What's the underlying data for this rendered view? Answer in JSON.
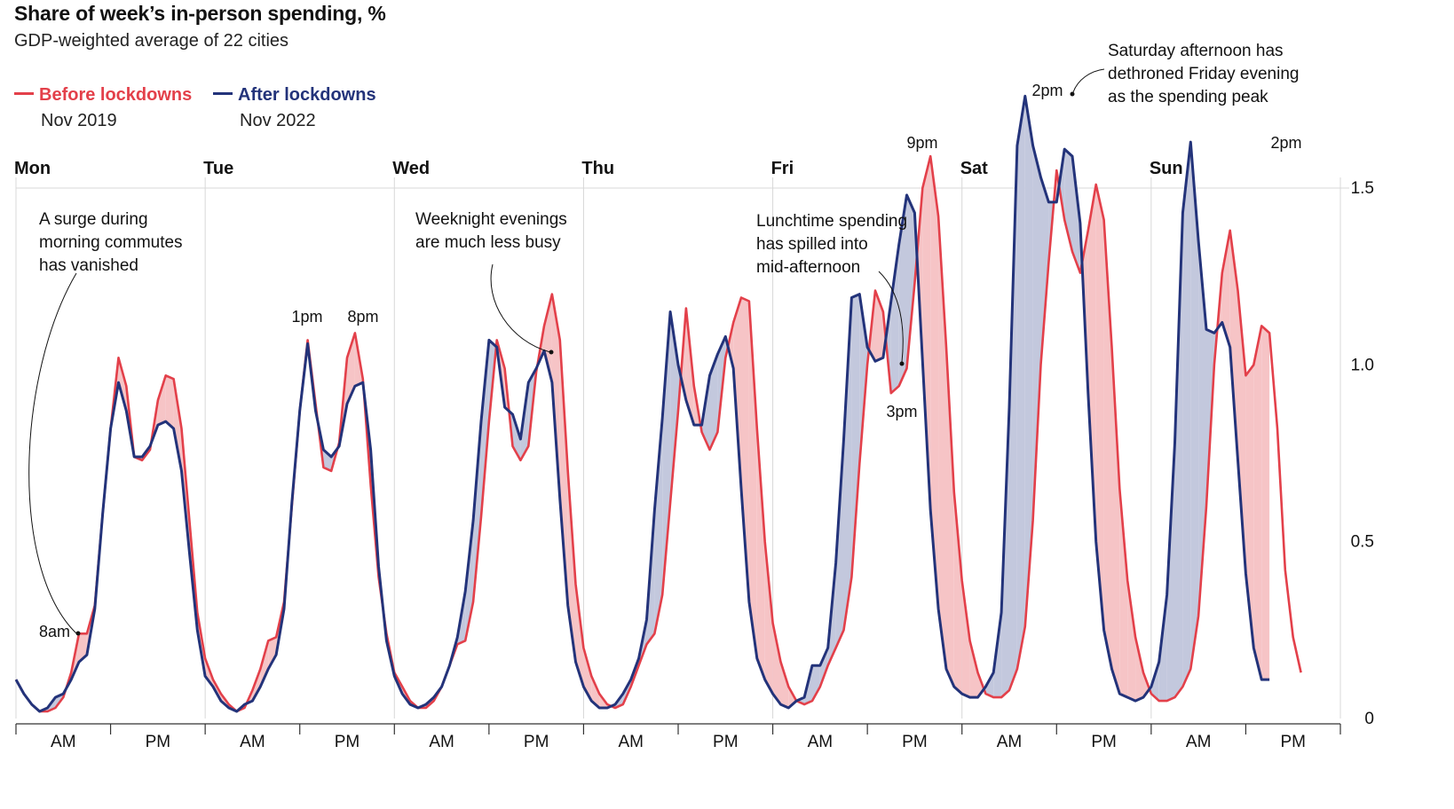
{
  "title": "Share of week’s in-person spending, %",
  "subtitle": "GDP-weighted average of 22 cities",
  "legend": {
    "before": {
      "label": "Before lockdowns",
      "date": "Nov 2019"
    },
    "after": {
      "label": "After lockdowns",
      "date": "Nov 2022"
    }
  },
  "colors": {
    "before": "#e3404a",
    "after": "#23337a",
    "fill_before_higher": "#f6c4c6",
    "fill_after_higher": "#c3c8dd",
    "grid": "#d8d8d8"
  },
  "chart_data": {
    "type": "line",
    "days": [
      "Mon",
      "Tue",
      "Wed",
      "Thu",
      "Fri",
      "Sat",
      "Sun"
    ],
    "period_labels": [
      "AM",
      "PM"
    ],
    "ylim": [
      0,
      1.5
    ],
    "y_ticks": [
      "0",
      "0.5",
      "1.0",
      "1.5"
    ],
    "x": "hour of week, 0 = Monday 00:00, 167 = Sunday 23:00",
    "series": [
      {
        "name": "Before lockdowns",
        "color": "#e3404a",
        "values": [
          0.11,
          0.07,
          0.04,
          0.02,
          0.02,
          0.03,
          0.06,
          0.13,
          0.24,
          0.24,
          0.32,
          0.58,
          0.82,
          1.02,
          0.94,
          0.74,
          0.73,
          0.76,
          0.9,
          0.97,
          0.96,
          0.82,
          0.56,
          0.3,
          0.17,
          0.11,
          0.07,
          0.04,
          0.02,
          0.03,
          0.08,
          0.14,
          0.22,
          0.23,
          0.33,
          0.6,
          0.87,
          1.07,
          0.89,
          0.71,
          0.7,
          0.78,
          1.02,
          1.09,
          0.96,
          0.66,
          0.4,
          0.24,
          0.13,
          0.09,
          0.05,
          0.03,
          0.03,
          0.05,
          0.09,
          0.15,
          0.21,
          0.22,
          0.33,
          0.57,
          0.84,
          1.07,
          0.99,
          0.77,
          0.73,
          0.77,
          0.98,
          1.11,
          1.2,
          1.07,
          0.7,
          0.38,
          0.2,
          0.12,
          0.07,
          0.04,
          0.03,
          0.04,
          0.09,
          0.15,
          0.21,
          0.24,
          0.35,
          0.61,
          0.87,
          1.16,
          0.94,
          0.81,
          0.76,
          0.81,
          1.02,
          1.12,
          1.19,
          1.18,
          0.82,
          0.5,
          0.27,
          0.16,
          0.09,
          0.05,
          0.04,
          0.05,
          0.09,
          0.15,
          0.2,
          0.25,
          0.4,
          0.72,
          1.0,
          1.21,
          1.15,
          0.92,
          0.94,
          0.99,
          1.23,
          1.5,
          1.59,
          1.42,
          1.05,
          0.64,
          0.39,
          0.22,
          0.13,
          0.07,
          0.06,
          0.06,
          0.08,
          0.14,
          0.26,
          0.56,
          1.0,
          1.29,
          1.55,
          1.41,
          1.32,
          1.26,
          1.38,
          1.51,
          1.41,
          1.05,
          0.65,
          0.39,
          0.23,
          0.13,
          0.07,
          0.05,
          0.05,
          0.06,
          0.09,
          0.14,
          0.29,
          0.6,
          1.0,
          1.26,
          1.38,
          1.21,
          0.97,
          1.0,
          1.11,
          1.09,
          0.82,
          0.42,
          0.23,
          0.13
        ]
      },
      {
        "name": "After lockdowns",
        "color": "#23337a",
        "values": [
          0.11,
          0.07,
          0.04,
          0.02,
          0.03,
          0.06,
          0.07,
          0.11,
          0.16,
          0.18,
          0.31,
          0.58,
          0.82,
          0.95,
          0.87,
          0.74,
          0.74,
          0.77,
          0.83,
          0.84,
          0.82,
          0.7,
          0.47,
          0.25,
          0.12,
          0.09,
          0.05,
          0.03,
          0.02,
          0.04,
          0.05,
          0.09,
          0.14,
          0.18,
          0.31,
          0.61,
          0.87,
          1.06,
          0.87,
          0.76,
          0.74,
          0.77,
          0.89,
          0.94,
          0.95,
          0.76,
          0.43,
          0.22,
          0.12,
          0.07,
          0.04,
          0.03,
          0.04,
          0.06,
          0.09,
          0.15,
          0.23,
          0.36,
          0.56,
          0.84,
          1.07,
          1.05,
          0.88,
          0.86,
          0.79,
          0.95,
          0.99,
          1.04,
          0.95,
          0.62,
          0.32,
          0.16,
          0.09,
          0.05,
          0.03,
          0.03,
          0.04,
          0.07,
          0.11,
          0.17,
          0.28,
          0.59,
          0.85,
          1.15,
          1.0,
          0.9,
          0.83,
          0.83,
          0.97,
          1.03,
          1.08,
          0.99,
          0.65,
          0.33,
          0.17,
          0.11,
          0.07,
          0.04,
          0.03,
          0.05,
          0.06,
          0.15,
          0.15,
          0.2,
          0.44,
          0.79,
          1.19,
          1.2,
          1.05,
          1.01,
          1.02,
          1.18,
          1.34,
          1.48,
          1.43,
          1.01,
          0.59,
          0.31,
          0.14,
          0.09,
          0.07,
          0.06,
          0.06,
          0.09,
          0.13,
          0.3,
          0.88,
          1.62,
          1.76,
          1.62,
          1.53,
          1.46,
          1.46,
          1.61,
          1.59,
          1.4,
          0.92,
          0.5,
          0.25,
          0.14,
          0.07,
          0.06,
          0.05,
          0.06,
          0.09,
          0.16,
          0.35,
          0.78,
          1.43,
          1.63,
          1.35,
          1.1,
          1.09,
          1.12,
          1.05,
          0.73,
          0.41,
          0.2,
          0.11,
          0.11
        ]
      }
    ],
    "annotations": [
      {
        "id": "mon",
        "text": [
          "A surge during",
          "morning commutes",
          "has vanished"
        ],
        "point_label": "8am"
      },
      {
        "id": "tue1",
        "point_label": "1pm"
      },
      {
        "id": "tue8",
        "point_label": "8pm"
      },
      {
        "id": "wed",
        "text": [
          "Weeknight evenings",
          "are much less busy"
        ]
      },
      {
        "id": "fri",
        "text": [
          "Lunchtime spending",
          "has spilled into",
          "mid-afternoon"
        ],
        "point_label": "3pm"
      },
      {
        "id": "fri9",
        "point_label": "9pm"
      },
      {
        "id": "sat",
        "text": [
          "Saturday afternoon has",
          "dethroned Friday evening",
          "as the spending peak"
        ],
        "point_label": "2pm"
      },
      {
        "id": "sun",
        "point_label": "2pm"
      }
    ]
  }
}
